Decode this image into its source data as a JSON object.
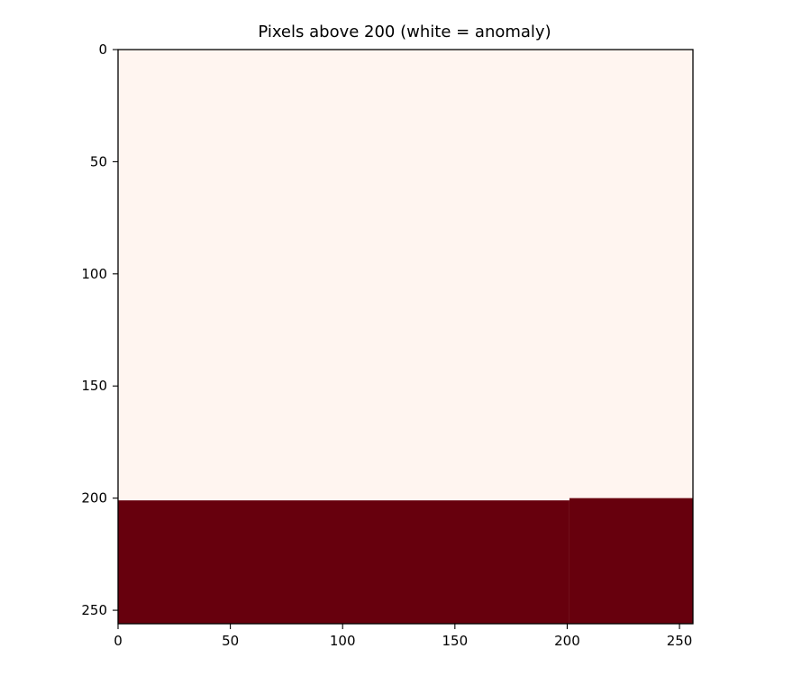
{
  "chart_data": {
    "type": "heatmap",
    "title": "Pixels above 200 (white = anomaly)",
    "xlabel": "",
    "ylabel": "",
    "xlim": [
      0,
      256
    ],
    "ylim": [
      256,
      0
    ],
    "y_axis_inverted": true,
    "x_ticks": [
      0,
      50,
      100,
      150,
      200,
      250
    ],
    "y_ticks": [
      0,
      50,
      100,
      150,
      200,
      250
    ],
    "colormap": "Reds",
    "regions": [
      {
        "name": "above",
        "x": [
          0,
          256
        ],
        "y": [
          0,
          201
        ],
        "value": 0,
        "color": "#fff5f0"
      },
      {
        "name": "below_left",
        "x": [
          0,
          201
        ],
        "y": [
          201,
          256
        ],
        "value": 1,
        "color": "#67000d"
      },
      {
        "name": "below_right",
        "x": [
          201,
          256
        ],
        "y": [
          200,
          256
        ],
        "value": 1,
        "color": "#67000d"
      }
    ],
    "grid": false
  }
}
